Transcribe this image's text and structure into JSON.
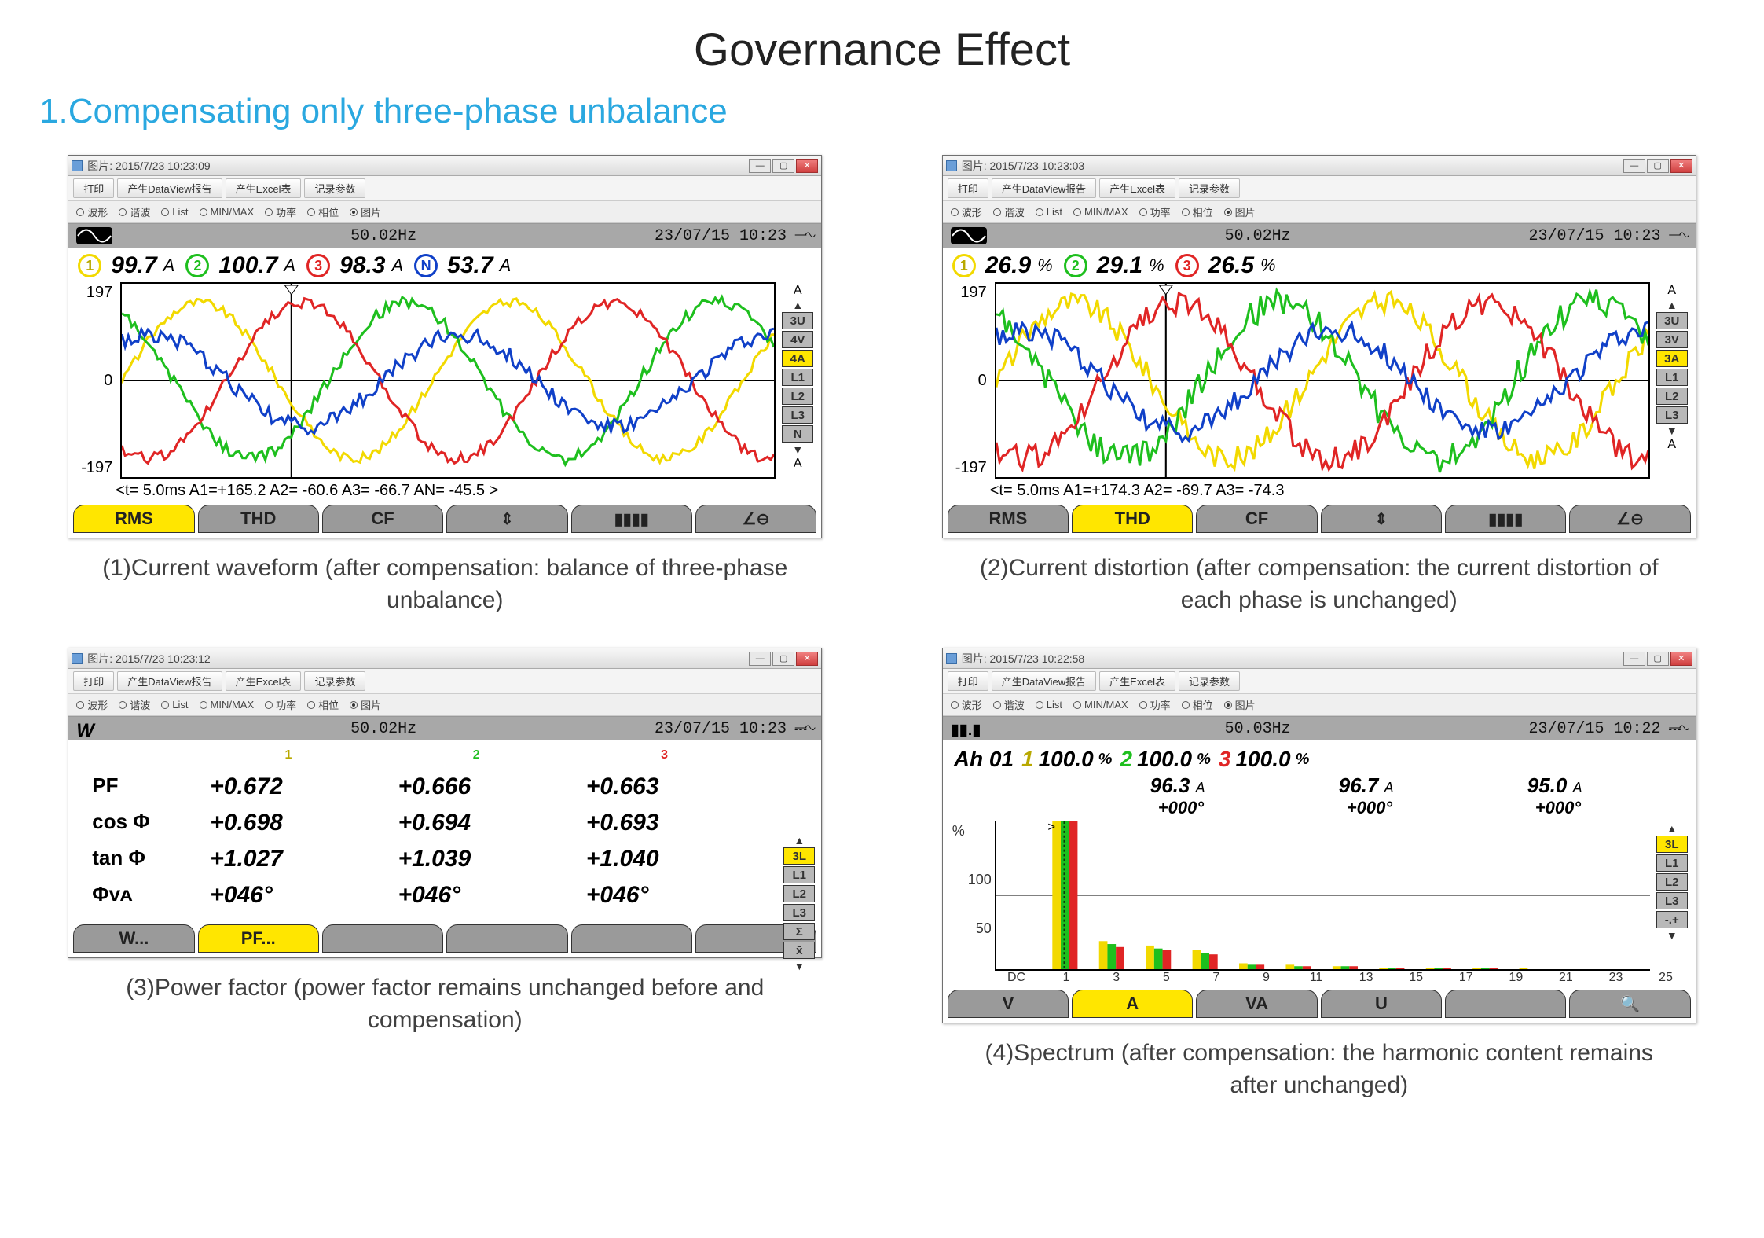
{
  "page": {
    "title": "Governance Effect",
    "section": "1.Compensating only three-phase unbalance"
  },
  "colors": {
    "phase1": "#f2d900",
    "phase2": "#1ebf1e",
    "phase3": "#e02525",
    "phaseN": "#1040c8",
    "rail_inactive": "#b8b8b8",
    "rail_active": "#ffe600",
    "tab_inactive": "#9a9a9a",
    "status_bg": "#a8a8a8",
    "accent_blue": "#2aa8e0"
  },
  "window_common": {
    "title_prefix": "图片:",
    "toolbar": [
      "打印",
      "产生DataView报告",
      "产生Excel表",
      "记录参数"
    ],
    "radios": [
      "波形",
      "谐波",
      "List",
      "MIN/MAX",
      "功率",
      "相位",
      "图片"
    ],
    "radio_selected_index": 6,
    "winbtns": {
      "min": "—",
      "max": "▢",
      "close": "✕"
    }
  },
  "panels": [
    {
      "id": "wave1",
      "title_ts": "2015/7/23 10:23:09",
      "caption": "(1)Current waveform (after compensation: balance of three-phase unbalance)",
      "status": {
        "mode": "wave",
        "freq": "50.02Hz",
        "datetime": "23/07/15  10:23"
      },
      "readouts": [
        {
          "chip": "1",
          "color": "#f2d900",
          "value": "99.7",
          "unit": "A"
        },
        {
          "chip": "2",
          "color": "#1ebf1e",
          "value": "100.7",
          "unit": "A"
        },
        {
          "chip": "3",
          "color": "#e02525",
          "value": "98.3",
          "unit": "A"
        },
        {
          "chip": "N",
          "color": "#1040c8",
          "value": "53.7",
          "unit": "A"
        }
      ],
      "y": {
        "max": "197",
        "mid": "0",
        "min": "-197"
      },
      "right_rail": [
        {
          "label": "3U",
          "active": false
        },
        {
          "label": "4V",
          "active": false
        },
        {
          "label": "4A",
          "active": true
        },
        {
          "label": "L1",
          "active": false
        },
        {
          "label": "L2",
          "active": false
        },
        {
          "label": "L3",
          "active": false
        },
        {
          "label": "N",
          "active": false
        }
      ],
      "rail_letter_top": "A",
      "rail_letter_bot": "A",
      "cursor": "<t=  5.0ms    A1=+165.2    A2=  -60.6    A3=  -66.7    AN=  -45.5   >",
      "tabs": [
        {
          "label": "RMS",
          "active": true
        },
        {
          "label": "THD",
          "active": false
        },
        {
          "label": "CF",
          "active": false
        },
        {
          "label": "⇕",
          "active": false,
          "icon": true
        },
        {
          "label": "▮▮▮▮",
          "active": false,
          "icon": true
        },
        {
          "label": "∠⊖",
          "active": false,
          "icon": true
        }
      ],
      "waves": {
        "amp": 0.85,
        "phases": [
          {
            "color": "#f2d900",
            "shift": 0.0,
            "jitter": 0.06
          },
          {
            "color": "#1ebf1e",
            "shift": 2.094,
            "jitter": 0.08
          },
          {
            "color": "#e02525",
            "shift": 4.189,
            "jitter": 0.07
          },
          {
            "color": "#1040c8",
            "shift": 1.0,
            "jitter": 0.18,
            "amp": 0.5
          }
        ],
        "cycles": 2.1,
        "cursor_x": 0.26
      }
    },
    {
      "id": "wave2",
      "title_ts": "2015/7/23 10:23:03",
      "caption": "(2)Current distortion (after compensation: the current distortion of each phase is unchanged)",
      "status": {
        "mode": "wave",
        "freq": "50.02Hz",
        "datetime": "23/07/15  10:23"
      },
      "readouts": [
        {
          "chip": "1",
          "color": "#f2d900",
          "value": "26.9",
          "unit": "%"
        },
        {
          "chip": "2",
          "color": "#1ebf1e",
          "value": "29.1",
          "unit": "%"
        },
        {
          "chip": "3",
          "color": "#e02525",
          "value": "26.5",
          "unit": "%"
        }
      ],
      "y": {
        "max": "197",
        "mid": "0",
        "min": "-197"
      },
      "right_rail": [
        {
          "label": "3U",
          "active": false
        },
        {
          "label": "3V",
          "active": false
        },
        {
          "label": "3A",
          "active": true
        },
        {
          "label": "L1",
          "active": false
        },
        {
          "label": "L2",
          "active": false
        },
        {
          "label": "L3",
          "active": false
        }
      ],
      "rail_letter_top": "A",
      "rail_letter_bot": "A",
      "cursor": "<t=  5.0ms    A1=+174.3    A2=  -69.7    A3=  -74.3",
      "tabs": [
        {
          "label": "RMS",
          "active": false
        },
        {
          "label": "THD",
          "active": true
        },
        {
          "label": "CF",
          "active": false
        },
        {
          "label": "⇕",
          "active": false,
          "icon": true
        },
        {
          "label": "▮▮▮▮",
          "active": false,
          "icon": true
        },
        {
          "label": "∠⊖",
          "active": false,
          "icon": true
        }
      ],
      "waves": {
        "amp": 0.85,
        "phases": [
          {
            "color": "#f2d900",
            "shift": 0.0,
            "jitter": 0.15
          },
          {
            "color": "#1ebf1e",
            "shift": 2.094,
            "jitter": 0.18
          },
          {
            "color": "#e02525",
            "shift": 4.189,
            "jitter": 0.16
          },
          {
            "color": "#1040c8",
            "shift": 1.0,
            "jitter": 0.22,
            "amp": 0.55
          }
        ],
        "cycles": 2.1,
        "cursor_x": 0.26
      }
    },
    {
      "id": "pf",
      "title_ts": "2015/7/23 10:23:12",
      "caption": "(3)Power factor (power factor remains unchanged before and compensation)",
      "status": {
        "mode": "W",
        "freq": "50.02Hz",
        "datetime": "23/07/15  10:23"
      },
      "pf": {
        "heads": [
          {
            "chip": "1",
            "color": "#f2d900"
          },
          {
            "chip": "2",
            "color": "#1ebf1e"
          },
          {
            "chip": "3",
            "color": "#e02525"
          }
        ],
        "rows": [
          {
            "label": "PF",
            "v1": "+0.672",
            "v2": "+0.666",
            "v3": "+0.663"
          },
          {
            "label": "cos Φ",
            "v1": "+0.698",
            "v2": "+0.694",
            "v3": "+0.693"
          },
          {
            "label": "tan Φ",
            "v1": "+1.027",
            "v2": "+1.039",
            "v3": "+1.040"
          },
          {
            "label": "Φᴠᴀ",
            "v1": "+046°",
            "v2": "+046°",
            "v3": "+046°"
          }
        ]
      },
      "right_rail": [
        {
          "label": "3L",
          "active": true
        },
        {
          "label": "L1",
          "active": false
        },
        {
          "label": "L2",
          "active": false
        },
        {
          "label": "L3",
          "active": false
        },
        {
          "label": "Σ",
          "active": false
        },
        {
          "label": "x̄",
          "active": false
        }
      ],
      "tabs": [
        {
          "label": "W...",
          "active": false
        },
        {
          "label": "PF...",
          "active": true
        },
        {
          "label": "",
          "active": false
        },
        {
          "label": "",
          "active": false
        },
        {
          "label": "",
          "active": false
        },
        {
          "label": "",
          "active": false
        }
      ]
    },
    {
      "id": "spec",
      "title_ts": "2015/7/23 10:22:58",
      "caption": "(4)Spectrum (after compensation: the harmonic content remains after unchanged)",
      "status": {
        "mode": "bars",
        "freq": "50.03Hz",
        "datetime": "23/07/15  10:22"
      },
      "spec_head": {
        "label": "Ah 01",
        "groups": [
          {
            "chip": "1",
            "color": "#f2d900",
            "pct": "100.0",
            "unit": "%"
          },
          {
            "chip": "2",
            "color": "#1ebf1e",
            "pct": "100.0",
            "unit": "%"
          },
          {
            "chip": "3",
            "color": "#e02525",
            "pct": "100.0",
            "unit": "%"
          }
        ],
        "amps": [
          "96.3",
          "96.7",
          "95.0"
        ],
        "amp_unit": "A",
        "degs": [
          "+000°",
          "+000°",
          "+000°"
        ]
      },
      "bars": {
        "y": {
          "max": "100",
          "mid": "50",
          "unit": "%"
        },
        "xticks": [
          "DC",
          "1",
          "3",
          "5",
          "7",
          "9",
          "11",
          "13",
          "15",
          "17",
          "19",
          "21",
          "23",
          "25"
        ],
        "series": [
          {
            "odd": "DC",
            "v": [
              0,
              0,
              0
            ]
          },
          {
            "odd": "1",
            "v": [
              100,
              100,
              100
            ]
          },
          {
            "odd": "3",
            "v": [
              19,
              17,
              15
            ]
          },
          {
            "odd": "5",
            "v": [
              16,
              14,
              13
            ]
          },
          {
            "odd": "7",
            "v": [
              13,
              11,
              10
            ]
          },
          {
            "odd": "9",
            "v": [
              4,
              3,
              3
            ]
          },
          {
            "odd": "11",
            "v": [
              3,
              2,
              2
            ]
          },
          {
            "odd": "13",
            "v": [
              2,
              2,
              2
            ]
          },
          {
            "odd": "15",
            "v": [
              1,
              1,
              1
            ]
          },
          {
            "odd": "17",
            "v": [
              1,
              1,
              1
            ]
          },
          {
            "odd": "19",
            "v": [
              1,
              1,
              1
            ]
          },
          {
            "odd": "21",
            "v": [
              1,
              0,
              0
            ]
          },
          {
            "odd": "23",
            "v": [
              0,
              0,
              0
            ]
          },
          {
            "odd": "25",
            "v": [
              0,
              0,
              0
            ]
          }
        ],
        "colors": [
          "#f2d900",
          "#1ebf1e",
          "#e02525"
        ],
        "cursor_index": 1
      },
      "right_rail": [
        {
          "label": "3L",
          "active": true
        },
        {
          "label": "L1",
          "active": false
        },
        {
          "label": "L2",
          "active": false
        },
        {
          "label": "L3",
          "active": false
        },
        {
          "label": "-.+",
          "active": false
        }
      ],
      "tabs": [
        {
          "label": "V",
          "active": false
        },
        {
          "label": "A",
          "active": true
        },
        {
          "label": "VA",
          "active": false
        },
        {
          "label": "U",
          "active": false
        },
        {
          "label": "",
          "active": false
        },
        {
          "label": "🔍",
          "active": false,
          "icon": true
        }
      ]
    }
  ]
}
